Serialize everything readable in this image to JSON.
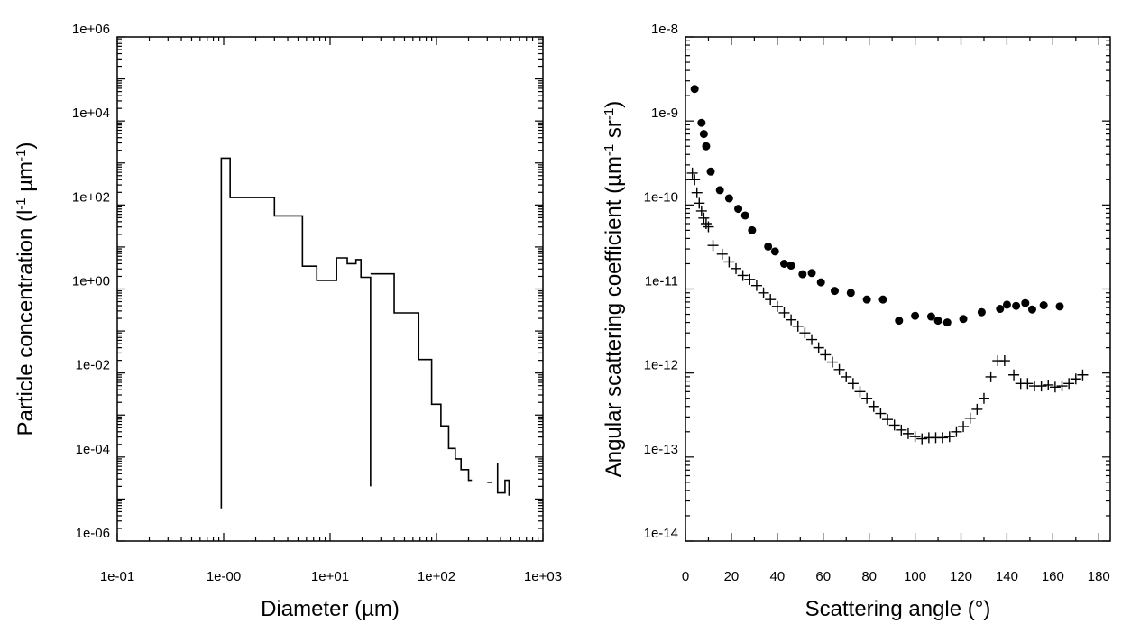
{
  "chart_data": [
    {
      "type": "line",
      "step": true,
      "xlabel": "Diameter (µm)",
      "ylabel_main": "Particle concentration (l",
      "ylabel_sup1": "-1",
      "ylabel_mid": " µm",
      "ylabel_sup2": "-1",
      "ylabel_end": ")",
      "x_scale": "log",
      "y_scale": "log",
      "xlim": [
        0.1,
        1000
      ],
      "ylim": [
        1e-06,
        1000000.0
      ],
      "x_ticks": [
        0.1,
        1,
        10,
        100,
        1000
      ],
      "x_tick_labels": [
        "1e-01",
        "1e-00",
        "1e+01",
        "1e+02",
        "1e+03"
      ],
      "y_ticks": [
        1e-06,
        0.0001,
        0.01,
        1,
        100,
        10000,
        1000000
      ],
      "y_tick_labels": [
        "1e-06",
        "1e-04",
        "1e-02",
        "1e+00",
        "1e+02",
        "1e+04",
        "1e+06"
      ],
      "grid": false,
      "segments": [
        [
          [
            0.95,
            6e-06
          ],
          [
            0.95,
            1300
          ],
          [
            1.15,
            1300
          ],
          [
            1.15,
            150
          ],
          [
            3.0,
            150
          ],
          [
            3.0,
            55
          ],
          [
            5.5,
            55
          ],
          [
            5.5,
            3.5
          ],
          [
            7.5,
            3.5
          ],
          [
            7.5,
            1.6
          ],
          [
            11.5,
            1.6
          ],
          [
            11.5,
            5.5
          ],
          [
            14.5,
            5.5
          ],
          [
            14.5,
            4.0
          ],
          [
            17.5,
            4.0
          ],
          [
            17.5,
            5.0
          ],
          [
            19.5,
            5.0
          ],
          [
            19.5,
            1.9
          ],
          [
            24.0,
            1.9
          ],
          [
            24.0,
            2e-05
          ]
        ],
        [
          [
            24.0,
            2.3
          ],
          [
            40.0,
            2.3
          ],
          [
            40.0,
            0.27
          ],
          [
            68.0,
            0.27
          ],
          [
            68.0,
            0.021
          ],
          [
            90.0,
            0.021
          ],
          [
            90.0,
            0.0018
          ],
          [
            110.0,
            0.0018
          ],
          [
            110.0,
            0.00055
          ],
          [
            130.0,
            0.00055
          ],
          [
            130.0,
            0.00016
          ],
          [
            150.0,
            0.00016
          ],
          [
            150.0,
            9e-05
          ],
          [
            170.0,
            9e-05
          ],
          [
            170.0,
            5e-05
          ],
          [
            200.0,
            5e-05
          ],
          [
            200.0,
            2.8e-05
          ],
          [
            215.0,
            2.8e-05
          ]
        ],
        [
          [
            300.0,
            2.5e-05
          ],
          [
            330.0,
            2.5e-05
          ]
        ],
        [
          [
            375.0,
            7e-05
          ],
          [
            375.0,
            1.4e-05
          ],
          [
            440.0,
            1.4e-05
          ],
          [
            440.0,
            2.8e-05
          ],
          [
            480.0,
            2.8e-05
          ],
          [
            480.0,
            1.2e-05
          ]
        ]
      ]
    },
    {
      "type": "scatter",
      "xlabel": "Scattering angle (°)",
      "ylabel_main": "Angular scattering coefficient (µm",
      "ylabel_sup1": "-1",
      "ylabel_mid": " sr",
      "ylabel_sup2": "-1",
      "ylabel_end": ")",
      "x_scale": "linear",
      "y_scale": "log",
      "xlim": [
        0,
        185
      ],
      "ylim": [
        1e-14,
        1e-08
      ],
      "x_ticks": [
        0,
        20,
        40,
        60,
        80,
        100,
        120,
        140,
        160,
        180
      ],
      "x_tick_labels": [
        "0",
        "20",
        "40",
        "60",
        "80",
        "100",
        "120",
        "140",
        "160",
        "180"
      ],
      "y_ticks": [
        1e-14,
        1e-13,
        1e-12,
        1e-11,
        1e-10,
        1e-09,
        1e-08
      ],
      "y_tick_labels": [
        "1e-14",
        "1e-13",
        "1e-12",
        "1e-11",
        "1e-10",
        "1e-9",
        "1e-8"
      ],
      "grid": false,
      "series": [
        {
          "marker": "circle",
          "x": [
            4,
            7,
            8,
            9,
            11,
            15,
            19,
            23,
            26,
            29,
            36,
            39,
            43,
            46,
            51,
            55,
            59,
            65,
            72,
            79,
            86,
            93,
            100,
            107,
            110,
            114,
            121,
            129,
            137,
            140,
            144,
            148,
            151,
            156,
            163
          ],
          "y": [
            2.4e-09,
            9.5e-10,
            7e-10,
            5e-10,
            2.5e-10,
            1.5e-10,
            1.2e-10,
            9e-11,
            7.5e-11,
            5e-11,
            3.2e-11,
            2.8e-11,
            2e-11,
            1.9e-11,
            1.5e-11,
            1.55e-11,
            1.2e-11,
            9.5e-12,
            9e-12,
            7.5e-12,
            7.5e-12,
            4.2e-12,
            4.8e-12,
            4.7e-12,
            4.2e-12,
            4e-12,
            4.4e-12,
            5.3e-12,
            5.8e-12,
            6.5e-12,
            6.3e-12,
            6.8e-12,
            5.7e-12,
            6.4e-12,
            6.2e-12
          ]
        },
        {
          "marker": "plus",
          "x": [
            3,
            4,
            5,
            6,
            7,
            8,
            9,
            10,
            12,
            16,
            19,
            22,
            25,
            28,
            31,
            34,
            37,
            40,
            43,
            46,
            49,
            52,
            55,
            58,
            61,
            64,
            67,
            70,
            73,
            76,
            79,
            82,
            85,
            88,
            91,
            94,
            97,
            100,
            103,
            106,
            109,
            112,
            115,
            118,
            121,
            124,
            127,
            130,
            133,
            136,
            139,
            143,
            146,
            149,
            152,
            155,
            158,
            161,
            164,
            167,
            170,
            173
          ],
          "y": [
            2.4e-10,
            2e-10,
            1.4e-10,
            1.05e-10,
            8.5e-11,
            7e-11,
            6e-11,
            5.5e-11,
            3.3e-11,
            2.6e-11,
            2.1e-11,
            1.75e-11,
            1.45e-11,
            1.3e-11,
            1.1e-11,
            9e-12,
            7.5e-12,
            6.2e-12,
            5.2e-12,
            4.3e-12,
            3.6e-12,
            3e-12,
            2.5e-12,
            2e-12,
            1.65e-12,
            1.35e-12,
            1.1e-12,
            9e-13,
            7.5e-13,
            6e-13,
            5e-13,
            4e-13,
            3.3e-13,
            2.8e-13,
            2.4e-13,
            2.1e-13,
            1.9e-13,
            1.75e-13,
            1.65e-13,
            1.7e-13,
            1.7e-13,
            1.7e-13,
            1.75e-13,
            2e-13,
            2.3e-13,
            2.9e-13,
            3.7e-13,
            5e-13,
            9e-13,
            1.4e-12,
            1.4e-12,
            9.5e-13,
            7.5e-13,
            7.5e-13,
            7e-13,
            7e-13,
            7.2e-13,
            6.8e-13,
            7e-13,
            7.5e-13,
            8.5e-13,
            9.5e-13
          ]
        }
      ]
    }
  ]
}
